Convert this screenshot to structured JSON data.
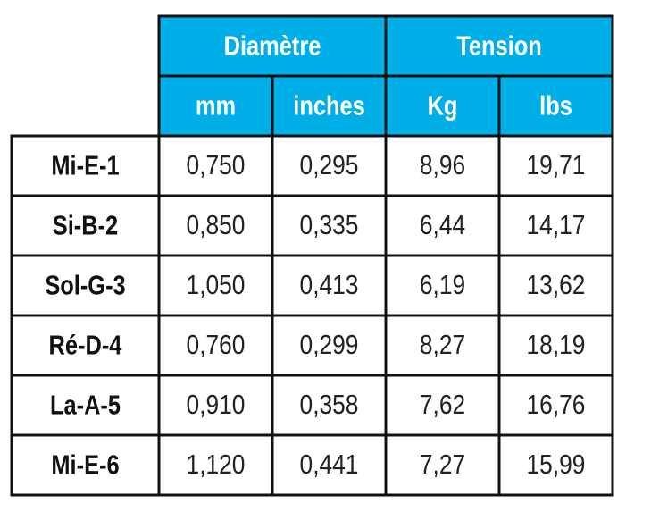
{
  "table": {
    "groups": [
      "Diamètre",
      "Tension"
    ],
    "units": [
      "mm",
      "inches",
      "Kg",
      "lbs"
    ],
    "rows": [
      {
        "label": "Mi-E-1",
        "cells": [
          "0,750",
          "0,295",
          "8,96",
          "19,71"
        ]
      },
      {
        "label": "Si-B-2",
        "cells": [
          "0,850",
          "0,335",
          "6,44",
          "14,17"
        ]
      },
      {
        "label": "Sol-G-3",
        "cells": [
          "1,050",
          "0,413",
          "6,19",
          "13,62"
        ]
      },
      {
        "label": "Ré-D-4",
        "cells": [
          "0,760",
          "0,299",
          "8,27",
          "18,19"
        ]
      },
      {
        "label": "La-A-5",
        "cells": [
          "0,910",
          "0,358",
          "7,62",
          "16,76"
        ]
      },
      {
        "label": "Mi-E-6",
        "cells": [
          "1,120",
          "0,441",
          "7,27",
          "15,99"
        ]
      }
    ]
  }
}
